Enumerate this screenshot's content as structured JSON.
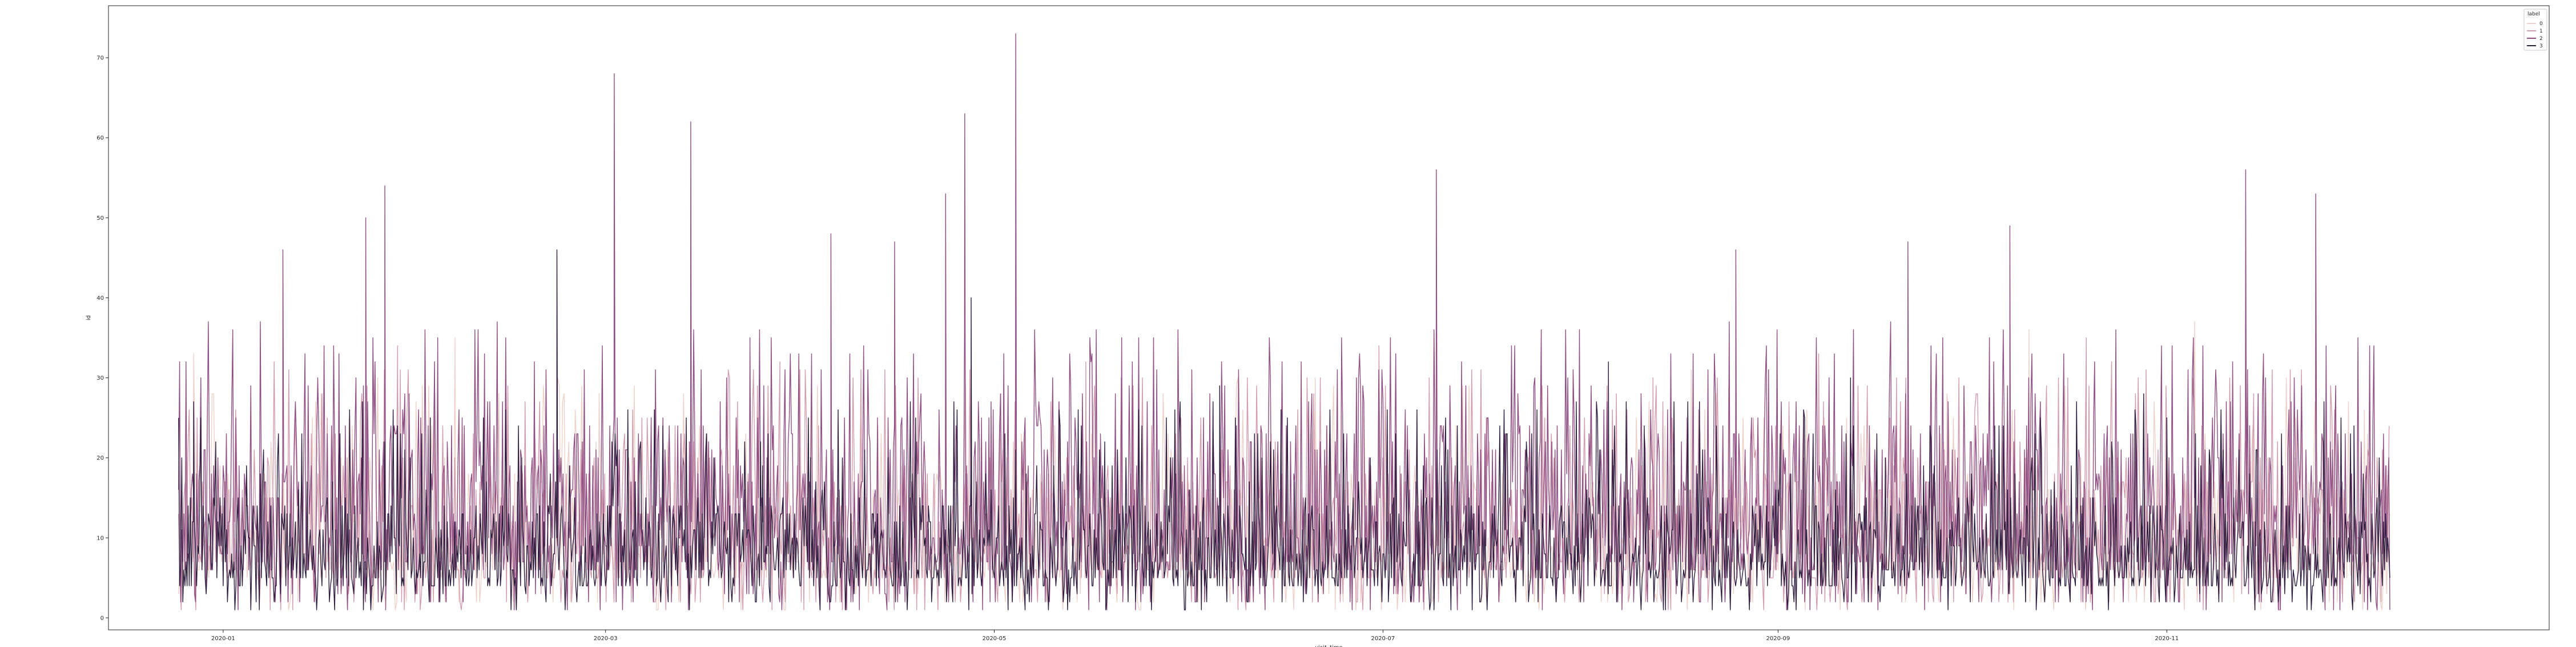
{
  "chart_data": {
    "type": "line",
    "title": "",
    "xlabel": "visit_time",
    "ylabel": "id",
    "xlim": [
      "2019-12-14",
      "2020-12-31"
    ],
    "ylim": [
      -1.5,
      76.5
    ],
    "x_ticks": [
      "2020-01",
      "2020-03",
      "2020-05",
      "2020-07",
      "2020-09",
      "2020-11"
    ],
    "y_ticks": [
      0,
      10,
      20,
      30,
      40,
      50,
      60,
      70
    ],
    "grid": false,
    "legend": {
      "title": "label",
      "placement": "top-right"
    },
    "x_start": "2019-12-25",
    "x_end": "2020-12-06",
    "series": [
      {
        "name": "0",
        "color": "#edd1cb",
        "peaks": [
          [
            "2019-12-27",
            33
          ],
          [
            "2020-01-16",
            28
          ],
          [
            "2020-02-06",
            35
          ],
          [
            "2020-05-04",
            42
          ],
          [
            "2020-06-20",
            30
          ],
          [
            "2020-08-18",
            31
          ],
          [
            "2020-10-10",
            36
          ],
          [
            "2020-11-05",
            37
          ]
        ]
      },
      {
        "name": "1",
        "color": "#d39db0",
        "peaks": [
          [
            "2020-01-28",
            34
          ],
          [
            "2020-03-28",
            32
          ],
          [
            "2020-05-15",
            32
          ],
          [
            "2020-06-30",
            34
          ],
          [
            "2020-08-12",
            30
          ],
          [
            "2020-09-07",
            33
          ],
          [
            "2020-10-19",
            35
          ],
          [
            "2020-11-20",
            31
          ]
        ]
      },
      {
        "name": "2",
        "color": "#8f4f82",
        "peaks": [
          [
            "2020-01-10",
            46
          ],
          [
            "2020-01-23",
            50
          ],
          [
            "2020-01-26",
            54
          ],
          [
            "2020-03-02",
            68
          ],
          [
            "2020-03-14",
            62
          ],
          [
            "2020-04-05",
            48
          ],
          [
            "2020-04-15",
            47
          ],
          [
            "2020-04-23",
            53
          ],
          [
            "2020-04-26",
            63
          ],
          [
            "2020-05-04",
            73
          ],
          [
            "2020-07-09",
            56
          ],
          [
            "2020-08-25",
            46
          ],
          [
            "2020-09-21",
            47
          ],
          [
            "2020-10-07",
            49
          ],
          [
            "2020-11-13",
            56
          ],
          [
            "2020-11-24",
            53
          ]
        ]
      },
      {
        "name": "3",
        "color": "#2d1e3e",
        "peaks": [
          [
            "2019-12-27",
            27
          ],
          [
            "2020-02-22",
            46
          ],
          [
            "2020-04-27",
            40
          ],
          [
            "2020-06-05",
            29
          ],
          [
            "2020-08-05",
            32
          ],
          [
            "2020-09-12",
            30
          ],
          [
            "2020-10-28",
            28
          ],
          [
            "2020-11-30",
            24
          ]
        ]
      }
    ]
  }
}
